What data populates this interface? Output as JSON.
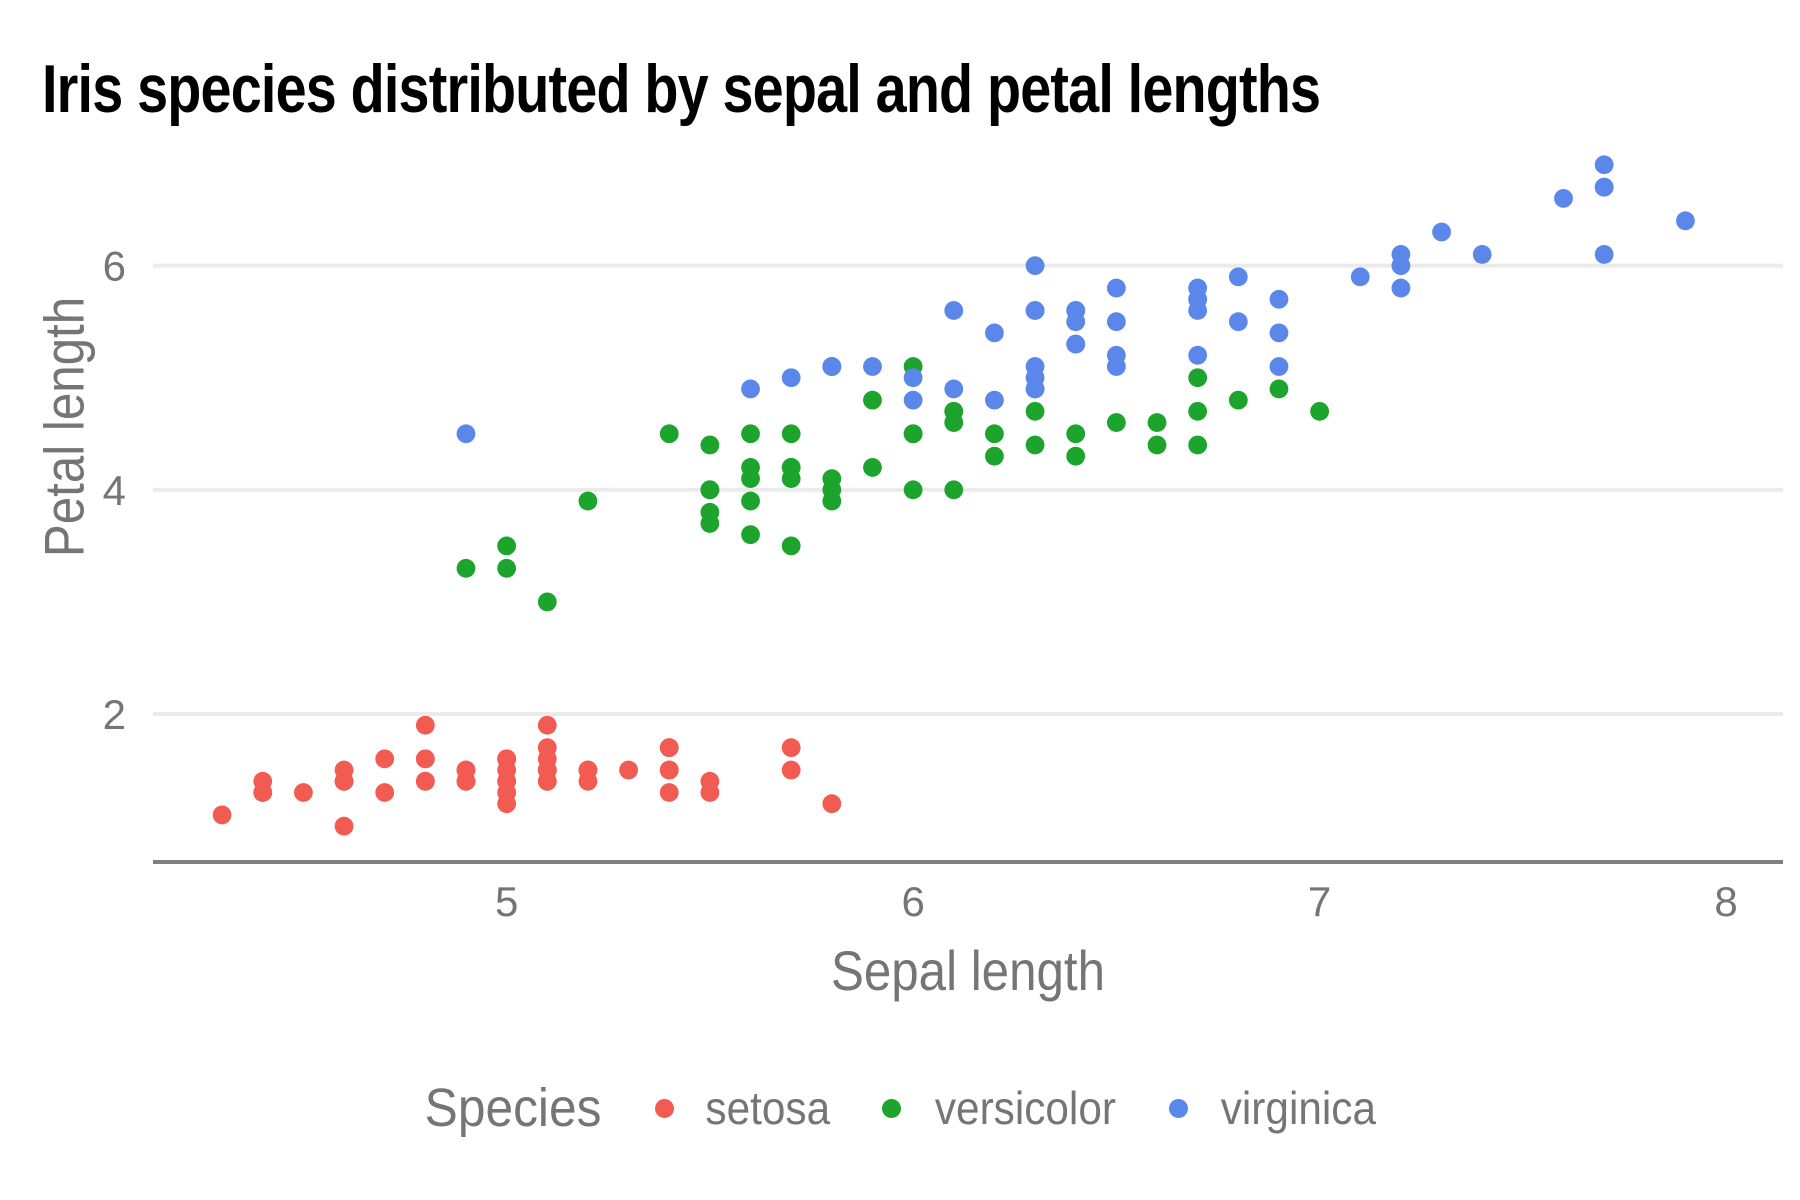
{
  "chart_data": {
    "type": "scatter",
    "title": "Iris species distributed by sepal and petal lengths",
    "xlabel": "Sepal length",
    "ylabel": "Petal length",
    "xlim": [
      4.13,
      8.14
    ],
    "ylim": [
      0.68,
      7.21
    ],
    "xticks": [
      5,
      6,
      7,
      8
    ],
    "yticks": [
      2,
      4,
      6
    ],
    "grid": "horizontal-major-only",
    "legend": {
      "title": "Species",
      "position": "bottom"
    },
    "colors": {
      "gridline": "#EBEBEB",
      "axis_line": "#808080",
      "tick_text": "#757575",
      "title_text": "#000000"
    },
    "point_radius_px": 9.4,
    "series": [
      {
        "name": "setosa",
        "color": "#F15B52",
        "points": [
          [
            5.1,
            1.4
          ],
          [
            4.9,
            1.4
          ],
          [
            4.7,
            1.3
          ],
          [
            4.6,
            1.5
          ],
          [
            5.0,
            1.4
          ],
          [
            5.4,
            1.7
          ],
          [
            4.6,
            1.4
          ],
          [
            5.0,
            1.5
          ],
          [
            4.4,
            1.4
          ],
          [
            4.9,
            1.5
          ],
          [
            5.4,
            1.5
          ],
          [
            4.8,
            1.6
          ],
          [
            4.8,
            1.4
          ],
          [
            4.3,
            1.1
          ],
          [
            5.8,
            1.2
          ],
          [
            5.7,
            1.5
          ],
          [
            5.4,
            1.3
          ],
          [
            5.1,
            1.4
          ],
          [
            5.7,
            1.7
          ],
          [
            5.1,
            1.5
          ],
          [
            5.4,
            1.7
          ],
          [
            5.1,
            1.5
          ],
          [
            4.6,
            1.0
          ],
          [
            5.1,
            1.7
          ],
          [
            4.8,
            1.9
          ],
          [
            5.0,
            1.6
          ],
          [
            5.0,
            1.6
          ],
          [
            5.2,
            1.5
          ],
          [
            5.2,
            1.4
          ],
          [
            4.7,
            1.6
          ],
          [
            4.8,
            1.6
          ],
          [
            5.4,
            1.5
          ],
          [
            5.2,
            1.5
          ],
          [
            5.5,
            1.4
          ],
          [
            4.9,
            1.5
          ],
          [
            5.0,
            1.2
          ],
          [
            5.5,
            1.3
          ],
          [
            4.9,
            1.4
          ],
          [
            4.4,
            1.3
          ],
          [
            5.1,
            1.5
          ],
          [
            5.0,
            1.3
          ],
          [
            4.5,
            1.3
          ],
          [
            4.4,
            1.3
          ],
          [
            5.0,
            1.6
          ],
          [
            5.1,
            1.9
          ],
          [
            4.8,
            1.4
          ],
          [
            5.1,
            1.6
          ],
          [
            4.6,
            1.4
          ],
          [
            5.3,
            1.5
          ],
          [
            5.0,
            1.4
          ]
        ]
      },
      {
        "name": "versicolor",
        "color": "#1CA42C",
        "points": [
          [
            7.0,
            4.7
          ],
          [
            6.4,
            4.5
          ],
          [
            6.9,
            4.9
          ],
          [
            5.5,
            4.0
          ],
          [
            6.5,
            4.6
          ],
          [
            5.7,
            4.5
          ],
          [
            6.3,
            4.7
          ],
          [
            4.9,
            3.3
          ],
          [
            6.6,
            4.6
          ],
          [
            5.2,
            3.9
          ],
          [
            5.0,
            3.5
          ],
          [
            5.9,
            4.2
          ],
          [
            6.0,
            4.0
          ],
          [
            6.1,
            4.7
          ],
          [
            5.6,
            3.6
          ],
          [
            6.7,
            4.4
          ],
          [
            5.6,
            4.5
          ],
          [
            5.8,
            4.1
          ],
          [
            6.2,
            4.5
          ],
          [
            5.6,
            3.9
          ],
          [
            5.9,
            4.8
          ],
          [
            6.1,
            4.0
          ],
          [
            6.3,
            4.9
          ],
          [
            6.1,
            4.7
          ],
          [
            6.4,
            4.3
          ],
          [
            6.6,
            4.4
          ],
          [
            6.8,
            4.8
          ],
          [
            6.7,
            5.0
          ],
          [
            6.0,
            4.5
          ],
          [
            5.7,
            3.5
          ],
          [
            5.5,
            3.8
          ],
          [
            5.5,
            3.7
          ],
          [
            5.8,
            3.9
          ],
          [
            6.0,
            5.1
          ],
          [
            5.4,
            4.5
          ],
          [
            6.0,
            4.5
          ],
          [
            6.7,
            4.7
          ],
          [
            6.3,
            4.4
          ],
          [
            5.6,
            4.1
          ],
          [
            5.5,
            4.0
          ],
          [
            5.5,
            4.4
          ],
          [
            6.1,
            4.6
          ],
          [
            5.8,
            4.0
          ],
          [
            5.0,
            3.3
          ],
          [
            5.6,
            4.2
          ],
          [
            5.7,
            4.2
          ],
          [
            5.7,
            4.2
          ],
          [
            6.2,
            4.3
          ],
          [
            5.1,
            3.0
          ],
          [
            5.7,
            4.1
          ]
        ]
      },
      {
        "name": "virginica",
        "color": "#5B87EA",
        "points": [
          [
            6.3,
            6.0
          ],
          [
            5.8,
            5.1
          ],
          [
            7.1,
            5.9
          ],
          [
            6.3,
            5.6
          ],
          [
            6.5,
            5.8
          ],
          [
            7.6,
            6.6
          ],
          [
            4.9,
            4.5
          ],
          [
            7.3,
            6.3
          ],
          [
            6.7,
            5.8
          ],
          [
            7.2,
            6.1
          ],
          [
            6.5,
            5.1
          ],
          [
            6.4,
            5.3
          ],
          [
            6.8,
            5.5
          ],
          [
            5.7,
            5.0
          ],
          [
            5.8,
            5.1
          ],
          [
            6.4,
            5.3
          ],
          [
            6.5,
            5.5
          ],
          [
            7.7,
            6.7
          ],
          [
            7.7,
            6.9
          ],
          [
            6.0,
            5.0
          ],
          [
            6.9,
            5.7
          ],
          [
            5.6,
            4.9
          ],
          [
            7.7,
            6.7
          ],
          [
            6.3,
            4.9
          ],
          [
            6.7,
            5.7
          ],
          [
            7.2,
            6.0
          ],
          [
            6.2,
            4.8
          ],
          [
            6.1,
            4.9
          ],
          [
            6.4,
            5.6
          ],
          [
            7.2,
            5.8
          ],
          [
            7.4,
            6.1
          ],
          [
            7.9,
            6.4
          ],
          [
            6.4,
            5.6
          ],
          [
            6.3,
            5.1
          ],
          [
            6.1,
            5.6
          ],
          [
            7.7,
            6.1
          ],
          [
            6.3,
            5.6
          ],
          [
            6.4,
            5.5
          ],
          [
            6.0,
            4.8
          ],
          [
            6.9,
            5.4
          ],
          [
            6.7,
            5.6
          ],
          [
            6.9,
            5.1
          ],
          [
            5.8,
            5.1
          ],
          [
            6.8,
            5.9
          ],
          [
            6.7,
            5.7
          ],
          [
            6.7,
            5.2
          ],
          [
            6.3,
            5.0
          ],
          [
            6.5,
            5.2
          ],
          [
            6.2,
            5.4
          ],
          [
            5.9,
            5.1
          ]
        ]
      }
    ]
  }
}
